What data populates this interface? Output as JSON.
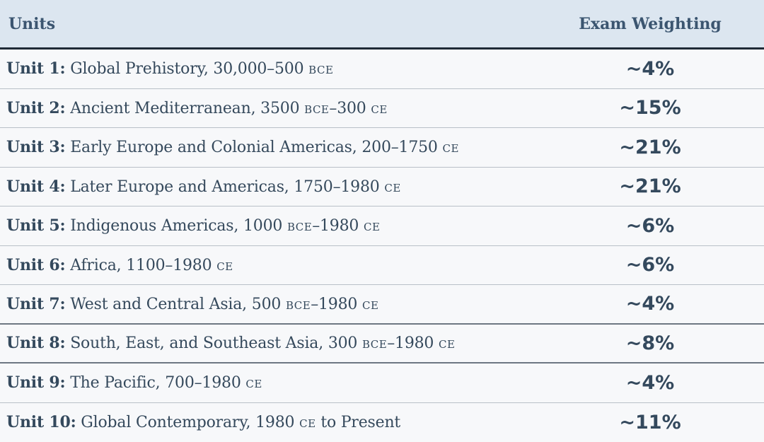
{
  "header": {
    "units": "Units",
    "weighting": "Exam Weighting"
  },
  "rows": [
    {
      "label": "Unit 1:",
      "name": "Global Prehistory,",
      "dates": [
        {
          "t": "30,000–500 ",
          "sc": false
        },
        {
          "t": "BCE",
          "sc": true
        }
      ],
      "weight": "~4%"
    },
    {
      "label": "Unit 2:",
      "name": "Ancient Mediterranean,",
      "dates": [
        {
          "t": "3500 ",
          "sc": false
        },
        {
          "t": "BCE",
          "sc": true
        },
        {
          "t": "–300 ",
          "sc": false
        },
        {
          "t": "CE",
          "sc": true
        }
      ],
      "weight": "~15%"
    },
    {
      "label": "Unit 3:",
      "name": "Early Europe and Colonial Americas,",
      "dates": [
        {
          "t": "200–1750 ",
          "sc": false
        },
        {
          "t": "CE",
          "sc": true
        }
      ],
      "weight": "~21%"
    },
    {
      "label": "Unit 4:",
      "name": "Later Europe and Americas,",
      "dates": [
        {
          "t": "1750–1980 ",
          "sc": false
        },
        {
          "t": "CE",
          "sc": true
        }
      ],
      "weight": "~21%"
    },
    {
      "label": "Unit 5:",
      "name": "Indigenous Americas,",
      "dates": [
        {
          "t": "1000 ",
          "sc": false
        },
        {
          "t": "BCE",
          "sc": true
        },
        {
          "t": "–1980 ",
          "sc": false
        },
        {
          "t": "CE",
          "sc": true
        }
      ],
      "weight": "~6%"
    },
    {
      "label": "Unit 6:",
      "name": "Africa,",
      "dates": [
        {
          "t": "1100–1980 ",
          "sc": false
        },
        {
          "t": "CE",
          "sc": true
        }
      ],
      "weight": "~6%"
    },
    {
      "label": "Unit 7:",
      "name": "West and Central Asia,",
      "dates": [
        {
          "t": "500 ",
          "sc": false
        },
        {
          "t": "BCE",
          "sc": true
        },
        {
          "t": "–1980 ",
          "sc": false
        },
        {
          "t": "CE",
          "sc": true
        }
      ],
      "weight": "~4%"
    },
    {
      "label": "Unit 8:",
      "name": "South, East, and Southeast Asia,",
      "dates": [
        {
          "t": "300 ",
          "sc": false
        },
        {
          "t": "BCE",
          "sc": true
        },
        {
          "t": "–1980 ",
          "sc": false
        },
        {
          "t": "CE",
          "sc": true
        }
      ],
      "weight": "~8%"
    },
    {
      "label": "Unit 9:",
      "name": "The Pacific,",
      "dates": [
        {
          "t": "700–1980 ",
          "sc": false
        },
        {
          "t": "CE",
          "sc": true
        }
      ],
      "weight": "~4%"
    },
    {
      "label": "Unit 10:",
      "name": "Global Contemporary,",
      "dates": [
        {
          "t": "1980 ",
          "sc": false
        },
        {
          "t": "CE",
          "sc": true
        },
        {
          "t": " to Present",
          "sc": false
        }
      ],
      "weight": "~11%"
    }
  ],
  "colors": {
    "header_bg": "#dce6f0",
    "text": "#34495d",
    "header_text": "#3b5570",
    "row_bg": "#f7f8fa"
  }
}
